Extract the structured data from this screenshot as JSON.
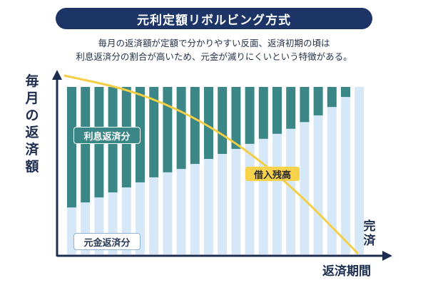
{
  "title": "元利定額リボルビング方式",
  "description": {
    "line1": "毎月の返済額が定額で分かりやすい反面、返済初期の頃は",
    "line2": "利息返済分の割合が高いため、元金が減りにくいという特徴がある。"
  },
  "axes": {
    "y_label": "毎月の返済額",
    "x_label": "返済期間",
    "end_label": "完済"
  },
  "labels": {
    "interest": "利息返済分",
    "principal": "元金返済分",
    "balance": "借入残高"
  },
  "colors": {
    "title_bg": "#1c3566",
    "interest": "#3b8686",
    "principal": "#d6e8f8",
    "balance_curve": "#f4cf45",
    "axis": "#1c2d4f"
  },
  "chart_data": {
    "type": "bar",
    "stacked": true,
    "bar_count": 22,
    "total_payment": 1,
    "series": [
      {
        "name": "元金返済分",
        "values": [
          0.28,
          0.31,
          0.34,
          0.37,
          0.4,
          0.43,
          0.46,
          0.49,
          0.51,
          0.54,
          0.57,
          0.6,
          0.63,
          0.66,
          0.69,
          0.72,
          0.75,
          0.79,
          0.83,
          0.88,
          0.94,
          1.0
        ]
      },
      {
        "name": "利息返済分",
        "values": [
          0.72,
          0.69,
          0.66,
          0.63,
          0.6,
          0.57,
          0.54,
          0.51,
          0.49,
          0.46,
          0.43,
          0.4,
          0.37,
          0.34,
          0.31,
          0.28,
          0.25,
          0.21,
          0.17,
          0.12,
          0.06,
          0.0
        ]
      }
    ],
    "balance_curve": [
      [
        0,
        1.0
      ],
      [
        0.25,
        0.91
      ],
      [
        0.5,
        0.72
      ],
      [
        0.75,
        0.42
      ],
      [
        1.0,
        0.0
      ]
    ]
  }
}
